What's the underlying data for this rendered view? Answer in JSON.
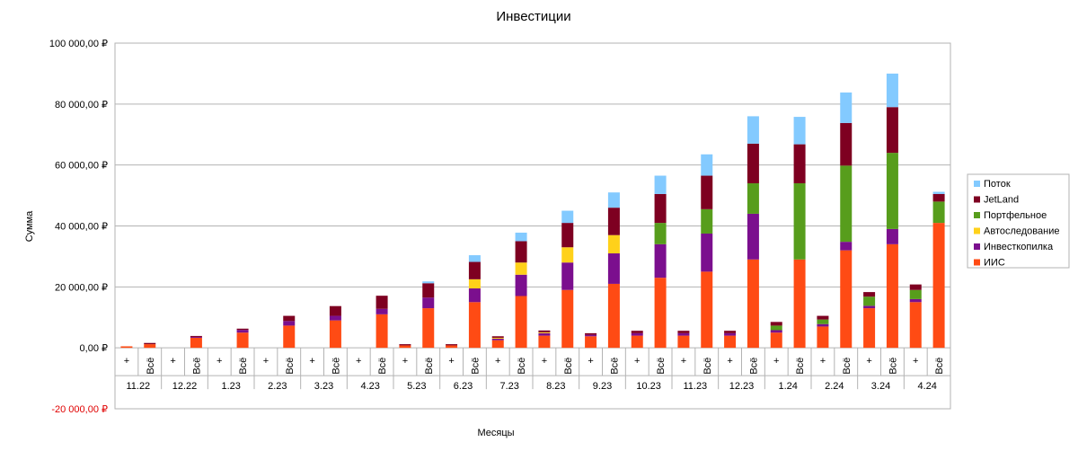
{
  "chart_data": {
    "type": "bar",
    "stacked": true,
    "title": "Инвестиции",
    "xlabel": "Месяцы",
    "ylabel": "Сумма",
    "ylim": [
      -20000,
      100000
    ],
    "y_ticks": [
      {
        "value": 100000,
        "label": "100 000,00 ₽"
      },
      {
        "value": 80000,
        "label": "80 000,00 ₽"
      },
      {
        "value": 60000,
        "label": "60 000,00 ₽"
      },
      {
        "value": 40000,
        "label": "40 000,00 ₽"
      },
      {
        "value": 20000,
        "label": "20 000,00 ₽"
      },
      {
        "value": 0,
        "label": "0,00 ₽"
      },
      {
        "value": -20000,
        "label": "-20 000,00 ₽",
        "color": "#e00000"
      }
    ],
    "grid": true,
    "legend_position": "right",
    "groups": [
      "11.22",
      "12.22",
      "1.23",
      "2.23",
      "3.23",
      "4.23",
      "5.23",
      "6.23",
      "7.23",
      "8.23",
      "9.23",
      "10.23",
      "11.23",
      "12.23",
      "1.24",
      "2.24",
      "3.24",
      "4.24"
    ],
    "sub_categories": [
      "+",
      "Всё"
    ],
    "series": [
      {
        "name": "ИИС",
        "color": "#ff4b14",
        "values": [
          500,
          1200,
          0,
          3300,
          0,
          5000,
          0,
          7300,
          0,
          9000,
          0,
          11000,
          800,
          13000,
          800,
          15000,
          2500,
          17000,
          4000,
          19000,
          3800,
          21000,
          4000,
          23000,
          4000,
          25000,
          4000,
          29000,
          5000,
          29000,
          7000,
          32000,
          13000,
          34000,
          15000,
          41000
        ]
      },
      {
        "name": "Инвесткопилка",
        "color": "#7b0f8e",
        "values": [
          0,
          0,
          0,
          300,
          0,
          900,
          0,
          1500,
          0,
          1500,
          0,
          1800,
          0,
          3500,
          0,
          4500,
          500,
          7000,
          800,
          9000,
          500,
          10000,
          800,
          11000,
          800,
          12500,
          800,
          15000,
          800,
          0,
          800,
          2800,
          800,
          5000,
          1000,
          0
        ]
      },
      {
        "name": "Автоследование",
        "color": "#ffd11a",
        "values": [
          0,
          0,
          0,
          0,
          0,
          0,
          0,
          0,
          0,
          0,
          0,
          0,
          0,
          0,
          0,
          3000,
          300,
          4000,
          300,
          5000,
          0,
          6000,
          0,
          0,
          0,
          0,
          0,
          0,
          0,
          0,
          0,
          0,
          0,
          0,
          0,
          0
        ]
      },
      {
        "name": "Портфельное",
        "color": "#579d1c",
        "values": [
          0,
          0,
          0,
          0,
          0,
          0,
          0,
          0,
          0,
          0,
          0,
          0,
          0,
          0,
          0,
          0,
          0,
          0,
          0,
          0,
          0,
          0,
          0,
          7000,
          0,
          8000,
          0,
          10000,
          1500,
          25000,
          1500,
          25000,
          3000,
          25000,
          3000,
          7000
        ]
      },
      {
        "name": "JetLand",
        "color": "#7e0021",
        "values": [
          0,
          400,
          0,
          300,
          0,
          400,
          0,
          1700,
          0,
          3200,
          0,
          4300,
          400,
          4700,
          400,
          5700,
          500,
          7000,
          600,
          8000,
          500,
          9000,
          800,
          9500,
          800,
          11000,
          800,
          13000,
          1200,
          12800,
          1200,
          14000,
          1500,
          15000,
          1800,
          2500
        ]
      },
      {
        "name": "Поток",
        "color": "#83caff",
        "values": [
          0,
          0,
          0,
          0,
          0,
          0,
          0,
          0,
          0,
          0,
          0,
          0,
          0,
          600,
          0,
          2200,
          0,
          2800,
          0,
          4000,
          0,
          5000,
          0,
          6000,
          0,
          7000,
          0,
          9000,
          0,
          9000,
          0,
          10000,
          0,
          11000,
          0,
          700
        ]
      }
    ]
  }
}
